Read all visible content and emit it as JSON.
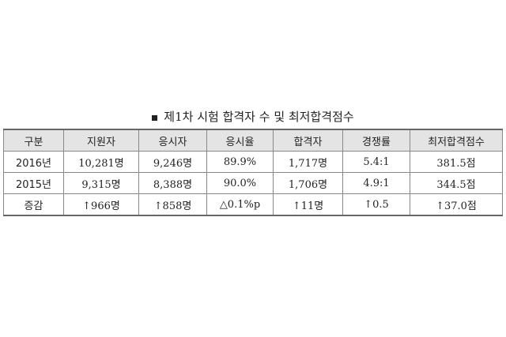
{
  "title": "제1차 시험 합격자 수 및 최저합격점수",
  "headers": [
    "구분",
    "지원자",
    "응시자",
    "응시율",
    "합격자",
    "경쟁률",
    "최저합격점수"
  ],
  "rows": [
    [
      "2016년",
      "10,281명",
      "9,246명",
      "89.9%",
      "1,717명",
      "5.4:1",
      "381.5점"
    ],
    [
      "2015년",
      "9,315명",
      "8,388명",
      "90.0%",
      "1,706명",
      "4.9:1",
      "344.5점"
    ],
    [
      "증감",
      "↑966명",
      "↑858명",
      "△0.1%p",
      "↑11명",
      "↑0.5",
      "↑37.0점"
    ]
  ]
}
